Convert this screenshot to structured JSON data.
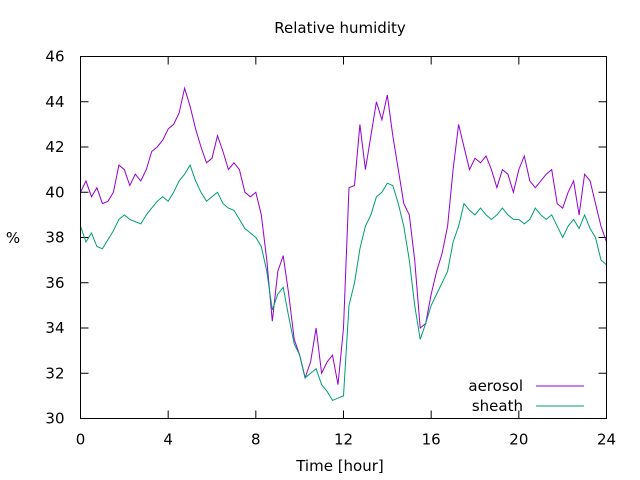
{
  "chart_data": {
    "type": "line",
    "title": "Relative humidity",
    "xlabel": "Time [hour]",
    "ylabel": "%",
    "xlim": [
      0,
      24
    ],
    "ylim": [
      30,
      46
    ],
    "xticks": [
      0,
      4,
      8,
      12,
      16,
      20,
      24
    ],
    "xtick_labels": [
      "0",
      "4",
      "8",
      "12",
      "16",
      "20",
      "24"
    ],
    "yticks": [
      30,
      32,
      34,
      36,
      38,
      40,
      42,
      44,
      46
    ],
    "ytick_labels": [
      "30",
      "32",
      "34",
      "36",
      "38",
      "40",
      "42",
      "44",
      "46"
    ],
    "grid": false,
    "legend_position": "bottom-right",
    "series": [
      {
        "name": "aerosol",
        "color": "#9400d3",
        "x": [
          0,
          0.25,
          0.5,
          0.75,
          1,
          1.25,
          1.5,
          1.75,
          2,
          2.25,
          2.5,
          2.75,
          3,
          3.25,
          3.5,
          3.75,
          4,
          4.25,
          4.5,
          4.75,
          5,
          5.25,
          5.5,
          5.75,
          6,
          6.25,
          6.5,
          6.75,
          7,
          7.25,
          7.5,
          7.75,
          8,
          8.25,
          8.5,
          8.75,
          9,
          9.25,
          9.5,
          9.75,
          10,
          10.25,
          10.5,
          10.75,
          11,
          11.25,
          11.5,
          11.75,
          12,
          12.25,
          12.5,
          12.75,
          13,
          13.25,
          13.5,
          13.75,
          14,
          14.25,
          14.5,
          14.75,
          15,
          15.25,
          15.5,
          15.75,
          16,
          16.25,
          16.5,
          16.75,
          17,
          17.25,
          17.5,
          17.75,
          18,
          18.25,
          18.5,
          18.75,
          19,
          19.25,
          19.5,
          19.75,
          20,
          20.25,
          20.5,
          20.75,
          21,
          21.25,
          21.5,
          21.75,
          22,
          22.25,
          22.5,
          22.75,
          23,
          23.25,
          23.5,
          23.75,
          24
        ],
        "values": [
          40.0,
          40.5,
          39.8,
          40.2,
          39.5,
          39.6,
          40.0,
          41.2,
          41.0,
          40.3,
          40.8,
          40.5,
          41.0,
          41.8,
          42.0,
          42.3,
          42.8,
          43.0,
          43.5,
          44.6,
          43.8,
          42.8,
          42.0,
          41.3,
          41.5,
          42.5,
          41.8,
          41.0,
          41.3,
          41.0,
          40.0,
          39.8,
          40.0,
          39.0,
          37.0,
          34.3,
          36.5,
          37.2,
          35.5,
          33.5,
          32.8,
          31.8,
          32.5,
          34.0,
          32.0,
          32.5,
          32.8,
          31.5,
          34.0,
          40.2,
          40.3,
          43.0,
          41.0,
          42.5,
          44.0,
          43.2,
          44.3,
          42.5,
          41.0,
          39.5,
          39.0,
          37.0,
          34.0,
          34.2,
          35.5,
          36.5,
          37.3,
          38.5,
          41.0,
          43.0,
          42.0,
          41.0,
          41.5,
          41.3,
          41.6,
          41.0,
          40.2,
          41.0,
          40.8,
          40.0,
          41.0,
          41.6,
          40.5,
          40.2,
          40.5,
          40.8,
          41.0,
          39.5,
          39.3,
          40.0,
          40.5,
          39.0,
          40.8,
          40.5,
          39.5,
          38.5,
          37.8
        ]
      },
      {
        "name": "sheath",
        "color": "#009e73",
        "x": [
          0,
          0.25,
          0.5,
          0.75,
          1,
          1.25,
          1.5,
          1.75,
          2,
          2.25,
          2.5,
          2.75,
          3,
          3.25,
          3.5,
          3.75,
          4,
          4.25,
          4.5,
          4.75,
          5,
          5.25,
          5.5,
          5.75,
          6,
          6.25,
          6.5,
          6.75,
          7,
          7.25,
          7.5,
          7.75,
          8,
          8.25,
          8.5,
          8.75,
          9,
          9.25,
          9.5,
          9.75,
          10,
          10.25,
          10.5,
          10.75,
          11,
          11.25,
          11.5,
          11.75,
          12,
          12.25,
          12.5,
          12.75,
          13,
          13.25,
          13.5,
          13.75,
          14,
          14.25,
          14.5,
          14.75,
          15,
          15.25,
          15.5,
          15.75,
          16,
          16.25,
          16.5,
          16.75,
          17,
          17.25,
          17.5,
          17.75,
          18,
          18.25,
          18.5,
          18.75,
          19,
          19.25,
          19.5,
          19.75,
          20,
          20.25,
          20.5,
          20.75,
          21,
          21.25,
          21.5,
          21.75,
          22,
          22.25,
          22.5,
          22.75,
          23,
          23.25,
          23.5,
          23.75,
          24
        ],
        "values": [
          38.5,
          37.8,
          38.2,
          37.6,
          37.5,
          37.9,
          38.3,
          38.8,
          39.0,
          38.8,
          38.7,
          38.6,
          39.0,
          39.3,
          39.6,
          39.8,
          39.6,
          40.0,
          40.5,
          40.8,
          41.2,
          40.5,
          40.0,
          39.6,
          39.8,
          40.0,
          39.5,
          39.3,
          39.2,
          38.8,
          38.4,
          38.2,
          38.0,
          37.6,
          36.5,
          34.8,
          35.5,
          35.8,
          34.5,
          33.3,
          32.8,
          31.8,
          32.0,
          32.2,
          31.5,
          31.2,
          30.8,
          30.9,
          31.0,
          35.0,
          36.0,
          37.5,
          38.5,
          39.0,
          39.8,
          40.0,
          40.4,
          40.3,
          39.5,
          38.5,
          37.0,
          35.0,
          33.5,
          34.2,
          35.0,
          35.5,
          36.0,
          36.5,
          37.8,
          38.5,
          39.5,
          39.2,
          39.0,
          39.3,
          39.0,
          38.8,
          39.0,
          39.3,
          39.0,
          38.8,
          38.8,
          38.6,
          38.8,
          39.3,
          39.0,
          38.8,
          39.0,
          38.5,
          38.0,
          38.5,
          38.8,
          38.4,
          39.0,
          38.4,
          38.0,
          37.0,
          36.8
        ]
      }
    ]
  }
}
